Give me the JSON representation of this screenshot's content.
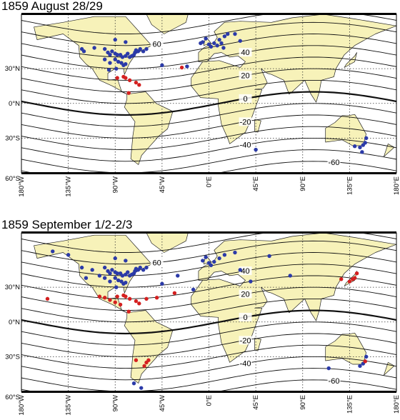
{
  "chart_data": [
    {
      "type": "map",
      "title": "1859 August 28/29",
      "xlim": [
        -180,
        180
      ],
      "ylim": [
        -60,
        77
      ],
      "xticks": [
        {
          "value": -180,
          "label": "180°W"
        },
        {
          "value": -135,
          "label": "135°W"
        },
        {
          "value": -90,
          "label": "90°W"
        },
        {
          "value": -45,
          "label": "45°W"
        },
        {
          "value": 0,
          "label": "0°E"
        },
        {
          "value": 45,
          "label": "45°E"
        },
        {
          "value": 90,
          "label": "90°E"
        },
        {
          "value": 135,
          "label": "135°E"
        },
        {
          "value": 180,
          "label": "180°E"
        }
      ],
      "yticks": [
        {
          "value": -60,
          "label": "60°S"
        },
        {
          "value": -30,
          "label": "30°S"
        },
        {
          "value": 0,
          "label": "0°N"
        },
        {
          "value": 30,
          "label": "30°N"
        }
      ],
      "grid": true,
      "contour_levels": [
        -70,
        -60,
        -50,
        -40,
        -30,
        -20,
        -10,
        0,
        10,
        20,
        30,
        40,
        50,
        60,
        70
      ],
      "contour_labels": [
        60,
        40,
        20,
        0,
        -20,
        -40,
        -60
      ],
      "series": [
        {
          "color": "#2b3aa8",
          "x": [
            -122,
            -120,
            -110,
            -100,
            -97,
            -95,
            -93,
            -90,
            -88,
            -85,
            -83,
            -80,
            -78,
            -76,
            -74,
            -72,
            -71,
            -70,
            -68,
            -90,
            -87,
            -84,
            -82,
            -80,
            -95,
            -100,
            -89,
            -96,
            -66,
            -63,
            -60,
            -80,
            -90,
            -45,
            -21,
            -6,
            -3,
            0,
            2,
            5,
            8,
            10,
            12,
            15,
            18,
            25,
            14,
            -8,
            30,
            45,
            148,
            150,
            151,
            145,
            147,
            140
          ],
          "y": [
            47,
            45,
            48,
            47,
            44,
            42,
            45,
            43,
            42,
            42,
            40,
            41,
            43,
            40,
            41,
            42,
            44,
            46,
            45,
            38,
            36,
            35,
            33,
            34,
            35,
            38,
            30,
            29,
            47,
            45,
            47,
            53,
            55,
            33,
            32,
            53,
            56,
            51,
            49,
            52,
            50,
            55,
            52,
            58,
            60,
            60,
            48,
            52,
            54,
            -40,
            -36,
            -34,
            -30,
            -38,
            -42,
            -37
          ]
        },
        {
          "color": "#d42020",
          "x": [
            -88,
            -82,
            -80,
            -76,
            -70,
            -67,
            -77,
            -26
          ],
          "y": [
            22,
            23,
            22,
            20,
            18,
            16,
            9,
            31
          ]
        }
      ]
    },
    {
      "type": "map",
      "title": "1859 September 1/2-2/3",
      "xlim": [
        -180,
        180
      ],
      "ylim": [
        -60,
        77
      ],
      "xticks": [
        {
          "value": -180,
          "label": "180°W"
        },
        {
          "value": -135,
          "label": "135°W"
        },
        {
          "value": -90,
          "label": "90°W"
        },
        {
          "value": -45,
          "label": "45°W"
        },
        {
          "value": 0,
          "label": "0°E"
        },
        {
          "value": 45,
          "label": "45°E"
        },
        {
          "value": 90,
          "label": "90°E"
        },
        {
          "value": 135,
          "label": "135°E"
        },
        {
          "value": 180,
          "label": "180°E"
        }
      ],
      "yticks": [
        {
          "value": -60,
          "label": "60°S"
        },
        {
          "value": -30,
          "label": "30°S"
        },
        {
          "value": 0,
          "label": "0°N"
        },
        {
          "value": 30,
          "label": "30°N"
        }
      ],
      "grid": true,
      "contour_levels": [
        -70,
        -60,
        -50,
        -40,
        -30,
        -20,
        -10,
        0,
        10,
        20,
        30,
        40,
        50,
        60,
        70
      ],
      "contour_labels": [
        60,
        40,
        20,
        0,
        -20,
        -40,
        -60
      ],
      "series": [
        {
          "color": "#2b3aa8",
          "x": [
            -122,
            -118,
            -112,
            -105,
            -100,
            -97,
            -95,
            -93,
            -90,
            -88,
            -85,
            -83,
            -80,
            -78,
            -76,
            -74,
            -72,
            -71,
            -70,
            -68,
            -90,
            -87,
            -84,
            -82,
            -80,
            -95,
            -100,
            -89,
            -66,
            -63,
            -60,
            -80,
            -90,
            -135,
            -150,
            -45,
            -30,
            -15,
            -6,
            -3,
            0,
            2,
            5,
            10,
            15,
            25,
            30,
            40,
            58,
            78,
            115,
            148,
            150,
            151,
            145,
            -72,
            -65
          ],
          "y": [
            47,
            38,
            45,
            40,
            47,
            44,
            42,
            45,
            43,
            42,
            42,
            40,
            41,
            43,
            40,
            41,
            42,
            44,
            46,
            45,
            38,
            36,
            35,
            33,
            34,
            35,
            38,
            30,
            47,
            45,
            47,
            53,
            55,
            58,
            61,
            33,
            40,
            28,
            53,
            56,
            51,
            49,
            52,
            55,
            58,
            60,
            45,
            35,
            57,
            40,
            -40,
            -36,
            -34,
            -30,
            -38,
            -53,
            -57
          ]
        },
        {
          "color": "#d42020",
          "x": [
            -155,
            -105,
            -100,
            -95,
            -90,
            -88,
            -85,
            -82,
            -80,
            -76,
            -70,
            -67,
            -77,
            -60,
            -50,
            -33,
            -58,
            -60,
            -62,
            -70,
            127,
            135,
            138,
            140,
            142,
            150
          ],
          "y": [
            20,
            22,
            21,
            19,
            17,
            22,
            15,
            23,
            22,
            20,
            18,
            16,
            9,
            20,
            21,
            25,
            -33,
            -35,
            -38,
            -33,
            37,
            35,
            37,
            38,
            42,
            -34
          ]
        }
      ]
    }
  ]
}
